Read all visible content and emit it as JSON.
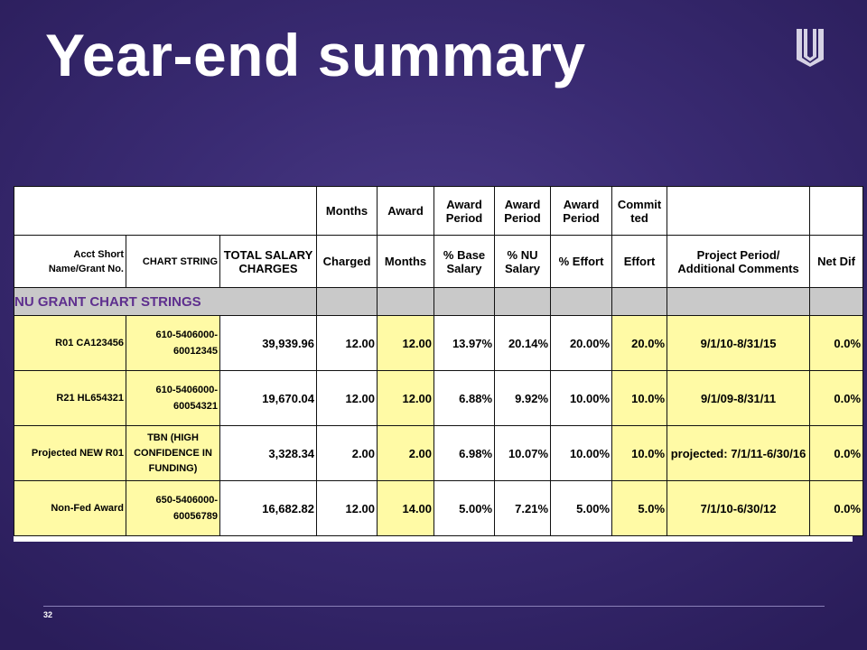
{
  "slide": {
    "title": "Year-end summary",
    "page_number": "32",
    "logo": "northwestern-university-logo-icon"
  },
  "table": {
    "header_row1": {
      "months": "Months",
      "award": "Award",
      "award_period_1": "Award Period",
      "award_period_2": "Award Period",
      "award_period_3": "Award Period",
      "committed": "Commit ted"
    },
    "header_row2": {
      "acct": "Acct Short Name/Grant No.",
      "chart": "CHART STRING",
      "total_salary": "TOTAL SALARY CHARGES",
      "charged": "Charged",
      "months": "Months",
      "pct_base": "% Base Salary",
      "pct_nu": "% NU Salary",
      "pct_effort": "% Effort",
      "effort": "Effort",
      "comments": "Project Period/ Additional Comments",
      "net_dif": "Net Dif"
    },
    "section_label": "NU GRANT CHART STRINGS",
    "rows": [
      {
        "acct": "R01 CA123456",
        "chart": "610-5406000-60012345",
        "total": "39,939.96",
        "charged": "12.00",
        "months": "12.00",
        "pct_base": "13.97%",
        "pct_nu": "20.14%",
        "pct_effort": "20.00%",
        "effort": "20.0%",
        "comments": "9/1/10-8/31/15",
        "net_dif": "0.0%"
      },
      {
        "acct": "R21 HL654321",
        "chart": "610-5406000-60054321",
        "total": "19,670.04",
        "charged": "12.00",
        "months": "12.00",
        "pct_base": "6.88%",
        "pct_nu": "9.92%",
        "pct_effort": "10.00%",
        "effort": "10.0%",
        "comments": "9/1/09-8/31/11",
        "net_dif": "0.0%"
      },
      {
        "acct": "Projected NEW R01",
        "chart": "TBN (HIGH CONFIDENCE IN FUNDING)",
        "total": "3,328.34",
        "charged": "2.00",
        "months": "2.00",
        "pct_base": "6.98%",
        "pct_nu": "10.07%",
        "pct_effort": "10.00%",
        "effort": "10.0%",
        "comments": "projected: 7/1/11-6/30/16",
        "net_dif": "0.0%"
      },
      {
        "acct": "Non-Fed Award",
        "chart": "650-5406000-60056789",
        "total": "16,682.82",
        "charged": "12.00",
        "months": "14.00",
        "pct_base": "5.00%",
        "pct_nu": "7.21%",
        "pct_effort": "5.00%",
        "effort": "5.0%",
        "comments": "7/1/10-6/30/12",
        "net_dif": "0.0%"
      }
    ]
  }
}
